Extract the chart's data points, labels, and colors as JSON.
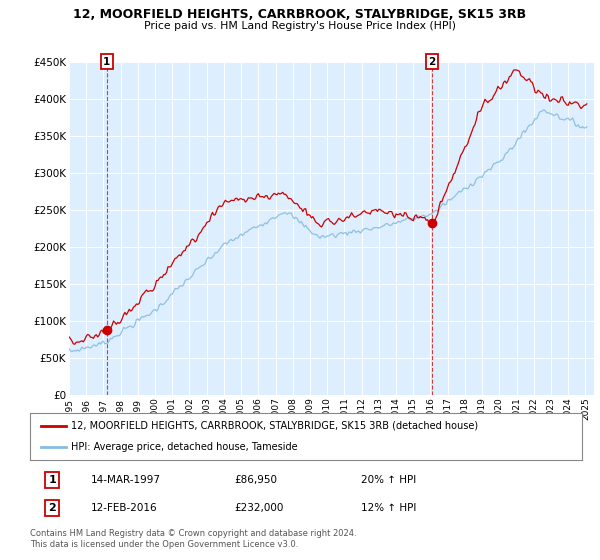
{
  "title": "12, MOORFIELD HEIGHTS, CARRBROOK, STALYBRIDGE, SK15 3RB",
  "subtitle": "Price paid vs. HM Land Registry's House Price Index (HPI)",
  "ylim": [
    0,
    450000
  ],
  "yticks": [
    0,
    50000,
    100000,
    150000,
    200000,
    250000,
    300000,
    350000,
    400000,
    450000
  ],
  "ytick_labels": [
    "£0",
    "£50K",
    "£100K",
    "£150K",
    "£200K",
    "£250K",
    "£300K",
    "£350K",
    "£400K",
    "£450K"
  ],
  "sale1_date": "14-MAR-1997",
  "sale1_price": 86950,
  "sale1_hpi": "20% ↑ HPI",
  "sale1_year": 1997.2,
  "sale2_date": "12-FEB-2016",
  "sale2_price": 232000,
  "sale2_hpi": "12% ↑ HPI",
  "sale2_year": 2016.1,
  "legend_house": "12, MOORFIELD HEIGHTS, CARRBROOK, STALYBRIDGE, SK15 3RB (detached house)",
  "legend_hpi": "HPI: Average price, detached house, Tameside",
  "footnote": "Contains HM Land Registry data © Crown copyright and database right 2024.\nThis data is licensed under the Open Government Licence v3.0.",
  "red_color": "#cc0000",
  "blue_color": "#88bbdd",
  "background_color": "#ddeeff",
  "plot_bg": "#ffffff"
}
